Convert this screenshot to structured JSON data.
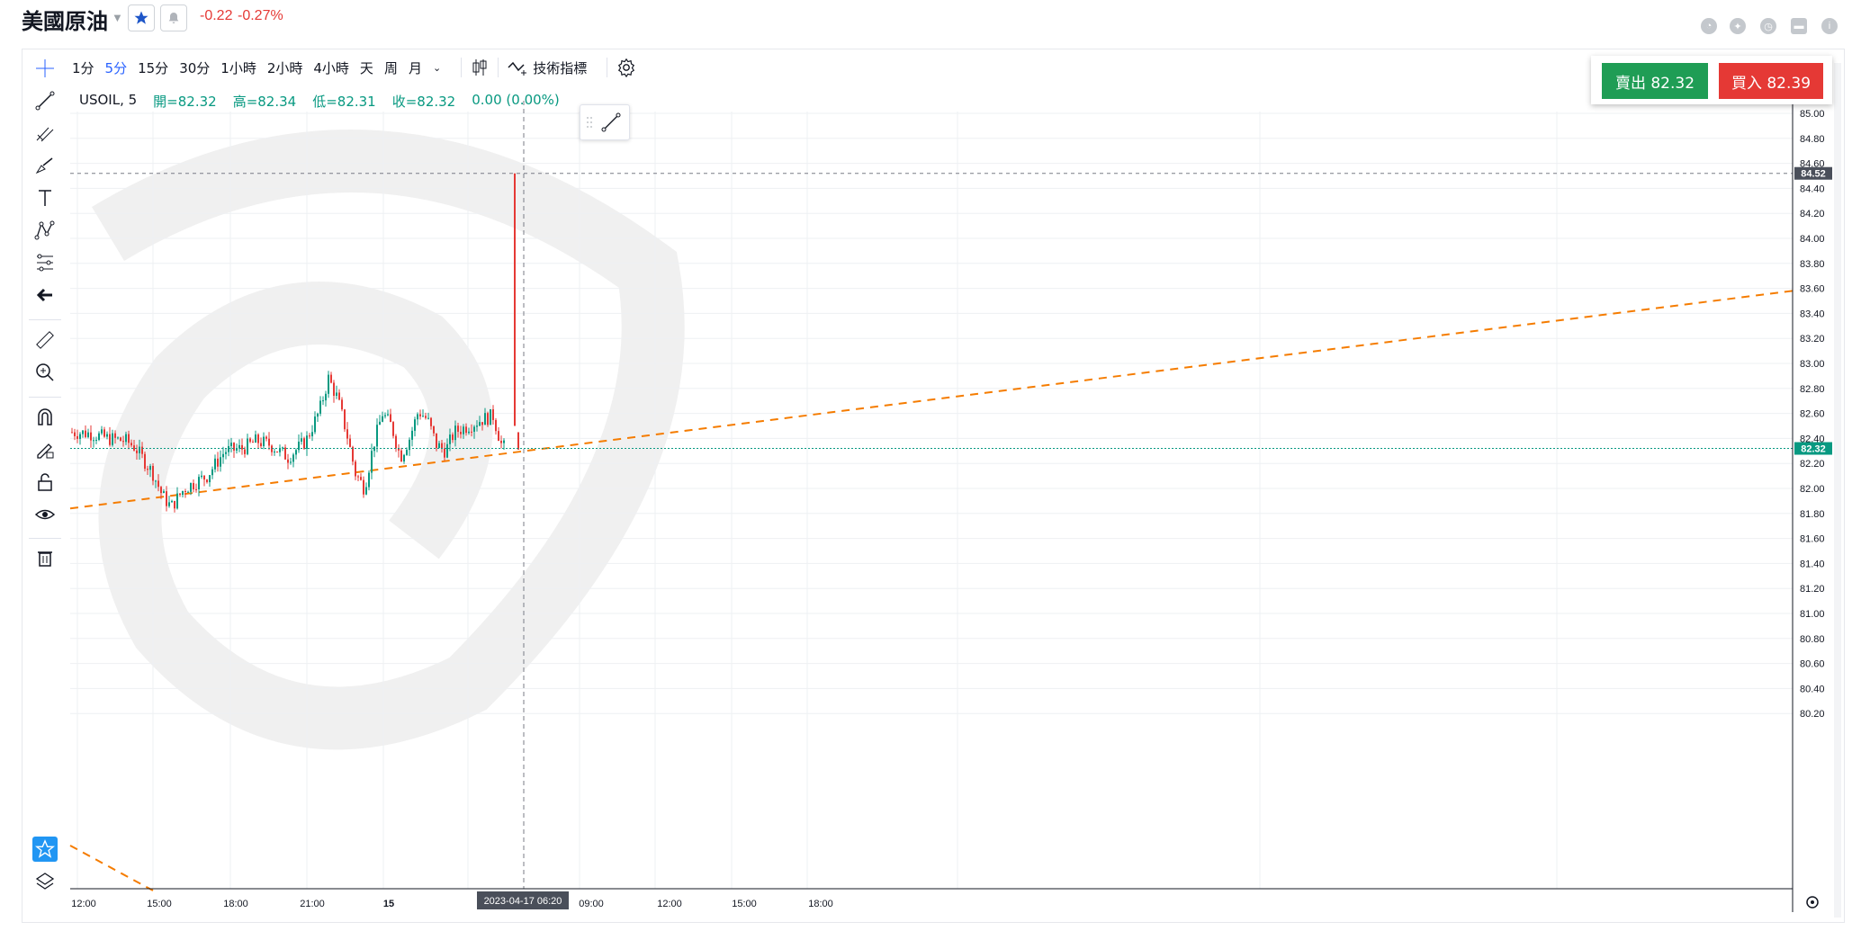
{
  "header": {
    "title": "美國原油",
    "change": "-0.22",
    "change_pct": "-0.27%"
  },
  "toolbar": {
    "timeframes": [
      "1分",
      "5分",
      "15分",
      "30分",
      "1小時",
      "2小時",
      "4小時",
      "天",
      "周",
      "月"
    ],
    "active_timeframe": "5分",
    "indicators_label": "技術指標"
  },
  "legend": {
    "symbol": "USOIL, 5",
    "open": "開=82.32",
    "high": "高=82.34",
    "low": "低=82.31",
    "close": "收=82.32",
    "change": "0.00 (0.00%)"
  },
  "orders": {
    "sell_label": "賣出 82.32",
    "buy_label": "買入 82.39"
  },
  "price_axis": {
    "ticks": [
      "85.00",
      "84.80",
      "84.60",
      "84.40",
      "84.20",
      "84.00",
      "83.80",
      "83.60",
      "83.40",
      "83.20",
      "83.00",
      "82.80",
      "82.60",
      "82.40",
      "82.20",
      "82.00",
      "81.80",
      "81.60",
      "81.40",
      "81.20",
      "81.00",
      "80.80",
      "80.60",
      "80.40",
      "80.20"
    ],
    "high_marker": "84.52",
    "last_marker": "82.32"
  },
  "time_axis": {
    "ticks": [
      "12:00",
      "15:00",
      "18:00",
      "21:00",
      "15",
      "09:00",
      "12:00",
      "15:00",
      "18:00"
    ],
    "crosshair_label": "2023-04-17  06:20"
  },
  "colors": {
    "up": "#089981",
    "down": "#e53935",
    "trend": "#f57c00",
    "accent": "#2962ff"
  }
}
